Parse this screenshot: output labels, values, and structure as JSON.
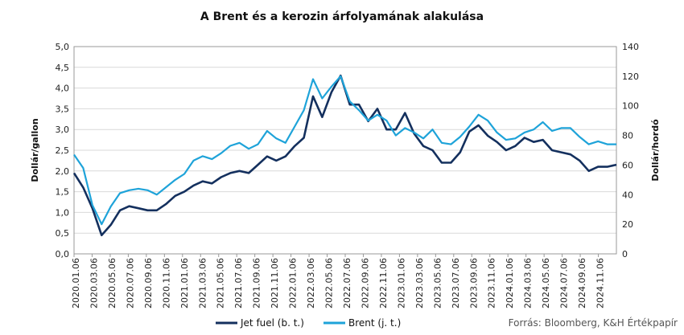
{
  "chart_data": {
    "type": "line",
    "title": "A Brent és a kerozin árfolyamának alakulása",
    "ylabel": "Dollár/gallon",
    "y2label": "Dollár/hordó",
    "ylim": [
      0,
      5
    ],
    "y2lim": [
      0,
      140
    ],
    "yticks": [
      "0,0",
      "0,5",
      "1,0",
      "1,5",
      "2,0",
      "2,5",
      "3,0",
      "3,5",
      "4,0",
      "4,5",
      "5,0"
    ],
    "y2ticks": [
      "0",
      "20",
      "40",
      "60",
      "80",
      "100",
      "120",
      "140"
    ],
    "xticks": [
      "2020.01.06",
      "2020.03.06",
      "2020.05.06",
      "2020.07.06",
      "2020.09.06",
      "2020.11.06",
      "2021.01.06",
      "2021.03.06",
      "2021.05.06",
      "2021.07.06",
      "2021.09.06",
      "2021.11.06",
      "2022.01.06",
      "2022.03.06",
      "2022.05.06",
      "2022.07.06",
      "2022.09.06",
      "2022.11.06",
      "2023.01.06",
      "2023.03.06",
      "2023.05.06",
      "2023.07.06",
      "2023.09.06",
      "2023.11.06",
      "2024.01.06",
      "2024.03.06",
      "2024.05.06",
      "2024.07.06",
      "2024.09.06",
      "2024.11.06"
    ],
    "x": [
      "2020.01",
      "2020.02",
      "2020.03",
      "2020.04",
      "2020.05",
      "2020.06",
      "2020.07",
      "2020.08",
      "2020.09",
      "2020.10",
      "2020.11",
      "2020.12",
      "2021.01",
      "2021.02",
      "2021.03",
      "2021.04",
      "2021.05",
      "2021.06",
      "2021.07",
      "2021.08",
      "2021.09",
      "2021.10",
      "2021.11",
      "2021.12",
      "2022.01",
      "2022.02",
      "2022.03",
      "2022.04",
      "2022.05",
      "2022.06",
      "2022.07",
      "2022.08",
      "2022.09",
      "2022.10",
      "2022.11",
      "2022.12",
      "2023.01",
      "2023.02",
      "2023.03",
      "2023.04",
      "2023.05",
      "2023.06",
      "2023.07",
      "2023.08",
      "2023.09",
      "2023.10",
      "2023.11",
      "2023.12",
      "2024.01",
      "2024.02",
      "2024.03",
      "2024.04",
      "2024.05",
      "2024.06",
      "2024.07",
      "2024.08",
      "2024.09",
      "2024.10",
      "2024.11",
      "2024.12"
    ],
    "series": [
      {
        "name": "Jet fuel (b. t.)",
        "axis": "left",
        "color": "#14305e",
        "values": [
          1.95,
          1.6,
          1.1,
          0.45,
          0.7,
          1.05,
          1.15,
          1.1,
          1.05,
          1.05,
          1.2,
          1.4,
          1.5,
          1.65,
          1.75,
          1.7,
          1.85,
          1.95,
          2.0,
          1.95,
          2.15,
          2.35,
          2.25,
          2.35,
          2.6,
          2.8,
          3.8,
          3.3,
          3.9,
          4.3,
          3.6,
          3.6,
          3.2,
          3.5,
          3.0,
          3.0,
          3.4,
          2.9,
          2.6,
          2.5,
          2.2,
          2.2,
          2.45,
          2.95,
          3.1,
          2.85,
          2.7,
          2.5,
          2.6,
          2.8,
          2.7,
          2.75,
          2.5,
          2.45,
          2.4,
          2.25,
          2.0,
          2.1,
          2.1,
          2.15
        ]
      },
      {
        "name": "Brent (j. t.)",
        "axis": "right",
        "color": "#1ea3d9",
        "values": [
          67,
          58,
          33,
          20,
          32,
          41,
          43,
          44,
          43,
          40,
          45,
          50,
          54,
          63,
          66,
          64,
          68,
          73,
          75,
          71,
          74,
          83,
          78,
          75,
          86,
          97,
          118,
          105,
          113,
          120,
          103,
          97,
          90,
          94,
          90,
          80,
          85,
          82,
          78,
          84,
          75,
          74,
          79,
          86,
          94,
          90,
          82,
          77,
          78,
          82,
          84,
          89,
          83,
          85,
          85,
          79,
          74,
          76,
          74,
          74
        ]
      }
    ],
    "legend": "bottom",
    "source": "Forrás: Bloomberg, K&H Értékpapír"
  }
}
